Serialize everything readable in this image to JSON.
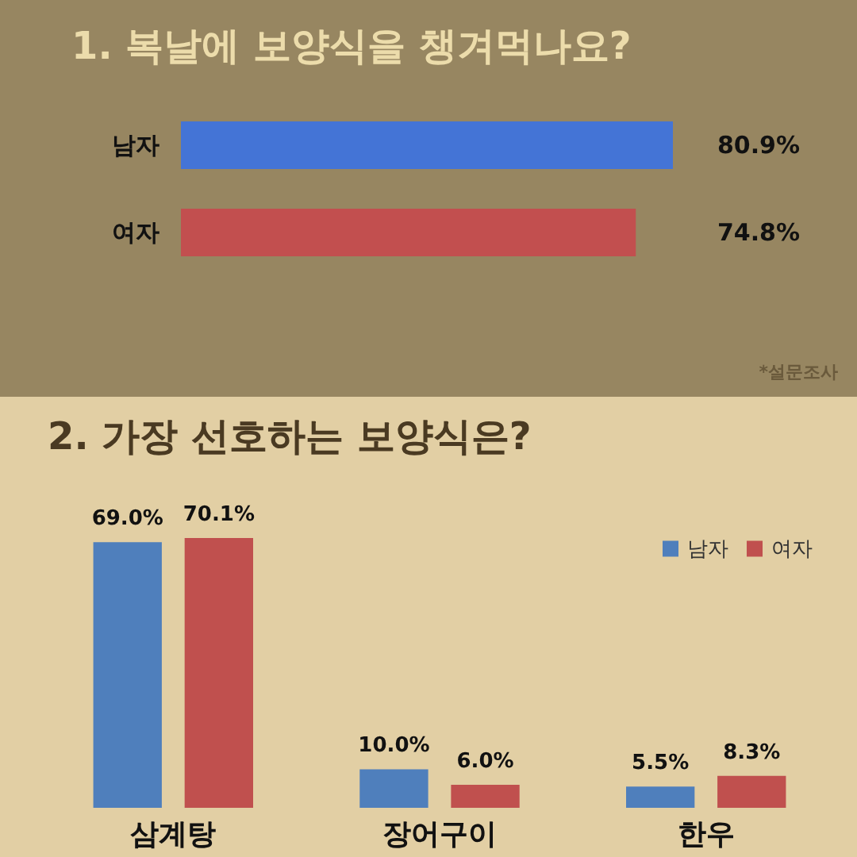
{
  "chart_data": [
    {
      "type": "bar",
      "orientation": "horizontal",
      "title": "1. 복날에 보양식을 챙겨먹나요?",
      "categories": [
        "남자",
        "여자"
      ],
      "values": [
        80.9,
        74.8
      ],
      "colors": [
        "#4474d6",
        "#c24f4f"
      ],
      "value_labels": [
        "80.9%",
        "74.8%"
      ],
      "annotations": [
        "*설문조사"
      ],
      "legend": false
    },
    {
      "type": "bar",
      "title": "2. 가장 선호하는 보양식은?",
      "categories": [
        "삼계탕",
        "장어구이",
        "한우"
      ],
      "series": [
        {
          "name": "남자",
          "color": "#4f7fbc",
          "values": [
            69.0,
            10.0,
            5.5
          ],
          "value_labels": [
            "69.0%",
            "10.0%",
            "5.5%"
          ]
        },
        {
          "name": "여자",
          "color": "#c0504e",
          "values": [
            70.1,
            6.0,
            8.3
          ],
          "value_labels": [
            "70.1%",
            "6.0%",
            "8.3%"
          ]
        }
      ],
      "legend": "top right"
    }
  ]
}
